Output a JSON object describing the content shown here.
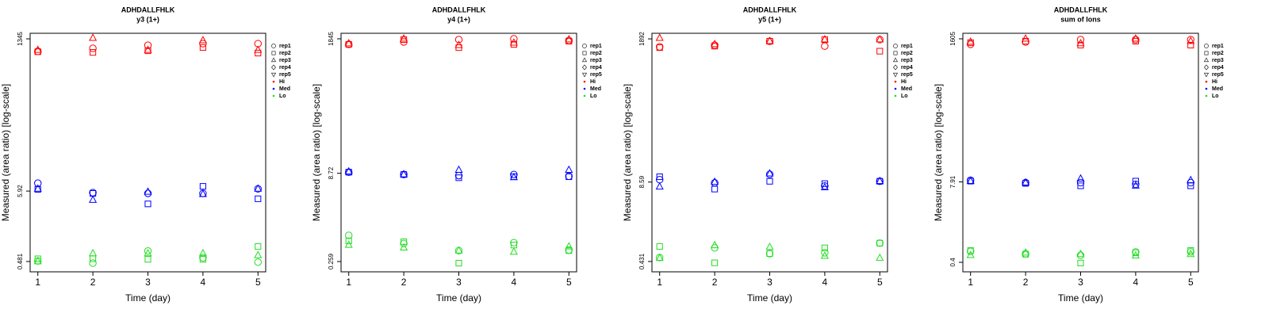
{
  "chart_data": [
    {
      "type": "scatter",
      "title": "ADHDALLFHLK",
      "subtitle": "y3 (1+)",
      "x_label": "Time (day)",
      "y_label": "Measured (area ratio) [log-scale]",
      "log_y": true,
      "x": [
        1,
        2,
        3,
        4,
        5
      ],
      "xlim": [
        0.86,
        5.14
      ],
      "xticks": [
        1,
        2,
        3,
        4,
        5
      ],
      "ylim": [
        0.333,
        1640
      ],
      "yticks": [
        0.481,
        5.92,
        1345
      ],
      "replicates": [
        {
          "name": "rep1",
          "marker": "circle"
        },
        {
          "name": "rep2",
          "marker": "square"
        },
        {
          "name": "rep3",
          "marker": "triangle"
        },
        {
          "name": "rep4",
          "marker": "diamond"
        },
        {
          "name": "rep5",
          "marker": "triangle-down"
        }
      ],
      "levels": [
        {
          "name": "Hi",
          "color": "#ff0000",
          "values": [
            [
              860,
              960,
              1070,
              1135,
              1135
            ],
            [
              850,
              830,
              880,
              990,
              810
            ],
            [
              900,
              1380,
              900,
              1270,
              900
            ]
          ]
        },
        {
          "name": "Med",
          "color": "#0000ff",
          "values": [
            [
              7.85,
              5.6,
              5.45,
              5.45,
              6.4
            ],
            [
              6.3,
              5.45,
              3.75,
              7.0,
              4.5
            ],
            [
              6.4,
              4.3,
              5.75,
              5.3,
              6.4
            ]
          ]
        },
        {
          "name": "Lo",
          "color": "#22dd22",
          "values": [
            [
              0.49,
              0.455,
              0.7,
              0.55,
              0.47
            ],
            [
              0.53,
              0.53,
              0.52,
              0.52,
              0.82
            ],
            [
              0.481,
              0.64,
              0.64,
              0.64,
              0.6
            ]
          ]
        }
      ]
    },
    {
      "type": "scatter",
      "title": "ADHDALLFHLK",
      "subtitle": "y4 (1+)",
      "x_label": "Time (day)",
      "y_label": "Measured (area ratio) [log-scale]",
      "log_y": true,
      "x": [
        1,
        2,
        3,
        4,
        5
      ],
      "xlim": [
        0.86,
        5.14
      ],
      "xticks": [
        1,
        2,
        3,
        4,
        5
      ],
      "ylim": [
        0.172,
        2300
      ],
      "yticks": [
        0.259,
        8.72,
        1845
      ],
      "replicates": [
        {
          "name": "rep1",
          "marker": "circle"
        },
        {
          "name": "rep2",
          "marker": "square"
        },
        {
          "name": "rep3",
          "marker": "triangle"
        },
        {
          "name": "rep4",
          "marker": "diamond"
        },
        {
          "name": "rep5",
          "marker": "triangle-down"
        }
      ],
      "levels": [
        {
          "name": "Hi",
          "color": "#ff0000",
          "values": [
            [
              1480,
              1630,
              1790,
              1845,
              1730
            ],
            [
              1480,
              1790,
              1300,
              1480,
              1680
            ],
            [
              1530,
              1845,
              1430,
              1570,
              1790
            ]
          ]
        },
        {
          "name": "Med",
          "color": "#0000ff",
          "values": [
            [
              9.1,
              8.3,
              7.96,
              8.3,
              7.75
            ],
            [
              9.1,
              8.3,
              7.3,
              7.6,
              7.6
            ],
            [
              9.3,
              8.3,
              9.9,
              7.4,
              9.9
            ]
          ]
        },
        {
          "name": "Lo",
          "color": "#22dd22",
          "values": [
            [
              0.735,
              0.53,
              0.4,
              0.55,
              0.41
            ],
            [
              0.59,
              0.57,
              0.243,
              0.5,
              0.4
            ],
            [
              0.5,
              0.45,
              0.4,
              0.38,
              0.47
            ]
          ]
        }
      ]
    },
    {
      "type": "scatter",
      "title": "ADHDALLFHLK",
      "subtitle": "y5 (1+)",
      "x_label": "Time (day)",
      "y_label": "Measured (area ratio) [log-scale]",
      "log_y": true,
      "x": [
        1,
        2,
        3,
        4,
        5
      ],
      "xlim": [
        0.86,
        5.14
      ],
      "xticks": [
        1,
        2,
        3,
        4,
        5
      ],
      "ylim": [
        0.292,
        2335
      ],
      "yticks": [
        0.431,
        8.59,
        1892
      ],
      "replicates": [
        {
          "name": "rep1",
          "marker": "circle"
        },
        {
          "name": "rep2",
          "marker": "square"
        },
        {
          "name": "rep3",
          "marker": "triangle"
        },
        {
          "name": "rep4",
          "marker": "diamond"
        },
        {
          "name": "rep5",
          "marker": "triangle-down"
        }
      ],
      "levels": [
        {
          "name": "Hi",
          "color": "#ff0000",
          "values": [
            [
              1400,
              1490,
              1730,
              1440,
              1840
            ],
            [
              1360,
              1440,
              1730,
              1840,
              1190
            ],
            [
              1950,
              1540,
              1730,
              1840,
              1840
            ]
          ]
        },
        {
          "name": "Med",
          "color": "#0000ff",
          "values": [
            [
              9.4,
              8.35,
              11.5,
              7.4,
              8.85
            ],
            [
              10.5,
              6.6,
              8.85,
              8.1,
              8.85
            ],
            [
              7.2,
              8.59,
              11.8,
              7.0,
              8.85
            ]
          ]
        },
        {
          "name": "Lo",
          "color": "#22dd22",
          "values": [
            [
              0.5,
              0.72,
              0.58,
              0.6,
              0.86
            ],
            [
              0.76,
              0.41,
              0.58,
              0.72,
              0.86
            ],
            [
              0.49,
              0.79,
              0.74,
              0.53,
              0.49
            ]
          ]
        }
      ]
    },
    {
      "type": "scatter",
      "title": "ADHDALLFHLK",
      "subtitle": "sum of Ions",
      "x_label": "Time (day)",
      "y_label": "Measured (area ratio) [log-scale]",
      "log_y": true,
      "x": [
        1,
        2,
        3,
        4,
        5
      ],
      "xlim": [
        0.86,
        5.14
      ],
      "xticks": [
        1,
        2,
        3,
        4,
        5
      ],
      "ylim": [
        0.281,
        1970
      ],
      "yticks": [
        0.4,
        7.91,
        1605
      ],
      "replicates": [
        {
          "name": "rep1",
          "marker": "circle"
        },
        {
          "name": "rep2",
          "marker": "square"
        },
        {
          "name": "rep3",
          "marker": "triangle"
        },
        {
          "name": "rep4",
          "marker": "diamond"
        },
        {
          "name": "rep5",
          "marker": "triangle-down"
        }
      ],
      "levels": [
        {
          "name": "Hi",
          "color": "#ff0000",
          "values": [
            [
              1310,
              1430,
              1560,
              1560,
              1560
            ],
            [
              1390,
              1470,
              1270,
              1470,
              1270
            ],
            [
              1430,
              1605,
              1350,
              1605,
              1470
            ]
          ]
        },
        {
          "name": "Med",
          "color": "#0000ff",
          "values": [
            [
              8.4,
              7.7,
              7.7,
              7.25,
              7.7
            ],
            [
              8.15,
              7.5,
              6.85,
              8.15,
              6.85
            ],
            [
              8.15,
              7.7,
              8.9,
              6.85,
              8.4
            ]
          ]
        },
        {
          "name": "Lo",
          "color": "#22dd22",
          "values": [
            [
              0.6,
              0.55,
              0.52,
              0.59,
              0.59
            ],
            [
              0.62,
              0.54,
              0.39,
              0.57,
              0.62
            ],
            [
              0.52,
              0.57,
              0.54,
              0.51,
              0.54
            ]
          ]
        }
      ]
    }
  ]
}
